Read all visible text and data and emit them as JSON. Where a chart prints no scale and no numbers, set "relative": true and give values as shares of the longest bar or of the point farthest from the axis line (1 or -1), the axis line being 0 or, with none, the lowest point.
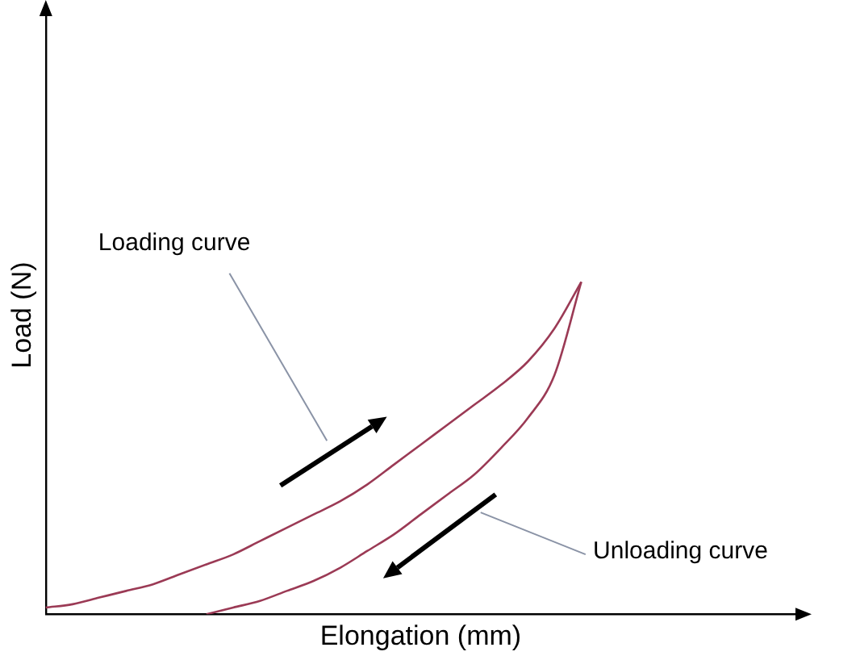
{
  "chart_data": {
    "type": "line",
    "relative": true,
    "xlabel": "Elongation (mm)",
    "ylabel": "Load (N)",
    "categories": [
      null,
      null,
      null,
      null,
      null,
      null,
      null,
      null,
      null,
      null,
      null,
      null,
      null,
      null,
      null,
      null,
      null,
      null,
      null,
      null,
      null,
      null,
      null,
      null,
      null,
      null,
      null,
      null,
      null
    ],
    "series": [
      {
        "color": "#9b3a55",
        "values": [
          0.02,
          0.03,
          0.05,
          0.07,
          0.09,
          0.12,
          0.15,
          0.18,
          0.22,
          0.26,
          0.3,
          0.34,
          0.39,
          0.45,
          0.51,
          0.57,
          0.63,
          0.69,
          0.76,
          0.86,
          1,
          null,
          null,
          null,
          null,
          null,
          null,
          null,
          null
        ]
      },
      {
        "color": "#9b3a55",
        "values": [
          null,
          null,
          null,
          null,
          null,
          null,
          0,
          0.02,
          0.04,
          0.07,
          0.1,
          0.14,
          0.19,
          0.24,
          0.3,
          0.36,
          0.42,
          0.5,
          0.59,
          0.72,
          1,
          null,
          null,
          null,
          null,
          null,
          null,
          null,
          null
        ]
      }
    ],
    "annotations": [
      "Loading curve",
      "Unloading curve"
    ],
    "marker": "none",
    "grid": false,
    "legend": false
  }
}
